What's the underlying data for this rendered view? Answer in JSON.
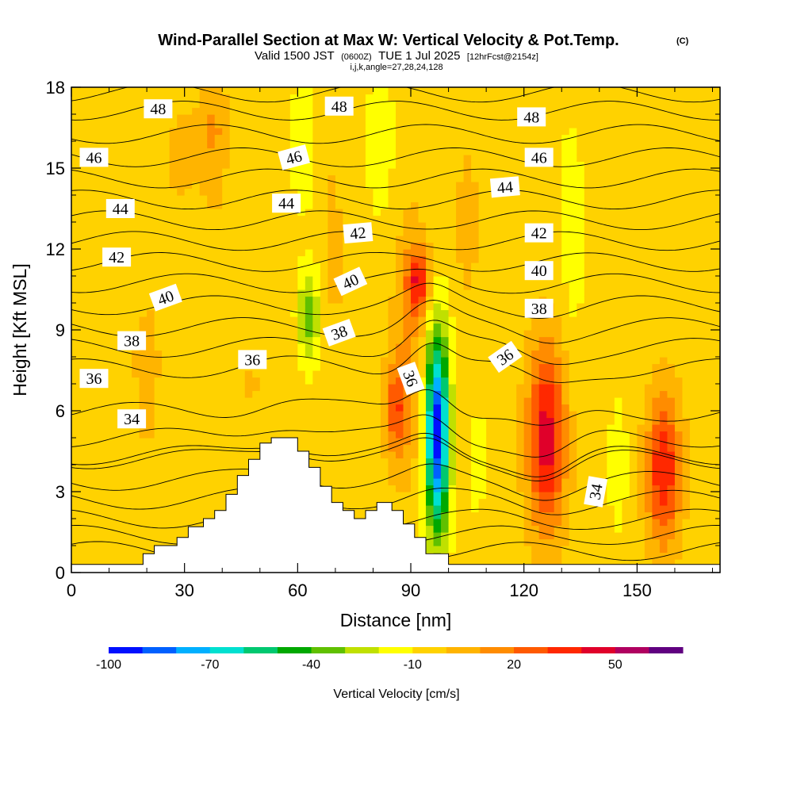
{
  "chart_data": {
    "type": "heatmap",
    "title": "Wind-Parallel Section at Max W: Vertical Velocity & Pot.Temp.",
    "title_mark": "(C)",
    "subtitle": {
      "valid": "Valid 1500 JST",
      "utc": "(0600Z)",
      "date": "TUE 1 Jul 2025",
      "fcst": "[12hrFcst@2154z]"
    },
    "index_line": "i,j,k,angle=27,28,24,128",
    "xlabel": "Distance [nm]",
    "ylabel": "Height [Kft MSL]",
    "xlim": [
      0,
      172
    ],
    "ylim": [
      0,
      18
    ],
    "x_ticks": [
      "0",
      "30",
      "60",
      "90",
      "120",
      "150"
    ],
    "y_ticks": [
      "0",
      "3",
      "6",
      "9",
      "12",
      "15",
      "18"
    ],
    "grid": false,
    "colorbar": {
      "label": "Vertical Velocity [cm/s]",
      "tick_labels": [
        "-100",
        "-70",
        "-40",
        "-10",
        "20",
        "50"
      ],
      "colors": [
        "#0010ff",
        "#0060ff",
        "#00b0ff",
        "#00e0d0",
        "#00c870",
        "#00a800",
        "#60c000",
        "#c0e000",
        "#ffff00",
        "#ffd200",
        "#ffb400",
        "#ff8c00",
        "#ff5a00",
        "#ff2800",
        "#e0002a",
        "#b00060",
        "#600080"
      ]
    },
    "w_field": {
      "units": "cm/s",
      "background": -5,
      "cells": [
        {
          "x": 20,
          "z": 9,
          "sx": 16,
          "sz": 6,
          "w": 5
        },
        {
          "x": 30,
          "z": 16,
          "sx": 8,
          "sz": 3,
          "w": 5
        },
        {
          "x": 38,
          "z": 16.5,
          "sx": 3,
          "sz": 2.5,
          "w": 15
        },
        {
          "x": 20,
          "z": 4,
          "sx": 10,
          "sz": 3,
          "w": 2
        },
        {
          "x": 48,
          "z": 7,
          "sx": 6,
          "sz": 3,
          "w": 5
        },
        {
          "x": 68,
          "z": 14,
          "sx": 4,
          "sz": 4,
          "w": 5
        },
        {
          "x": 62,
          "z": 16,
          "sx": 4,
          "sz": 3,
          "w": -12
        },
        {
          "x": 82,
          "z": 16,
          "sx": 4,
          "sz": 3,
          "w": -12
        },
        {
          "x": 70,
          "z": 11,
          "sx": 2.5,
          "sz": 3,
          "w": 5
        },
        {
          "x": 63,
          "z": 9.5,
          "sx": 3,
          "sz": 1.8,
          "w": -30
        },
        {
          "x": 90,
          "z": 8.5,
          "sx": 5,
          "sz": 5,
          "w": 15
        },
        {
          "x": 86,
          "z": 6,
          "sx": 3,
          "sz": 1.8,
          "w": 30
        },
        {
          "x": 92,
          "z": 10.8,
          "sx": 3,
          "sz": 1.2,
          "w": 38
        },
        {
          "x": 97,
          "z": 5.2,
          "sx": 3.2,
          "sz": 3.8,
          "w": -92
        },
        {
          "x": 105,
          "z": 13,
          "sx": 3,
          "sz": 3,
          "w": 10
        },
        {
          "x": 112,
          "z": 2,
          "sx": 2.5,
          "sz": 2,
          "w": 4
        },
        {
          "x": 108,
          "z": 4,
          "sx": 2,
          "sz": 2.5,
          "w": -10
        },
        {
          "x": 126,
          "z": 5,
          "sx": 5,
          "sz": 3.5,
          "w": 50
        },
        {
          "x": 133,
          "z": 13,
          "sx": 4,
          "sz": 5,
          "w": -10
        },
        {
          "x": 138,
          "z": 17,
          "sx": 4,
          "sz": 2,
          "w": 5
        },
        {
          "x": 160,
          "z": 16.5,
          "sx": 8,
          "sz": 3,
          "w": 5
        },
        {
          "x": 145,
          "z": 4,
          "sx": 3,
          "sz": 3,
          "w": -10
        },
        {
          "x": 157,
          "z": 3.8,
          "sx": 4.5,
          "sz": 2.8,
          "w": 45
        },
        {
          "x": 170,
          "z": 6,
          "sx": 5,
          "sz": 5,
          "w": 2
        }
      ]
    },
    "theta_labels": [
      {
        "text": "48",
        "x": 23,
        "z": 17.2,
        "angle": 0
      },
      {
        "text": "48",
        "x": 71,
        "z": 17.3,
        "angle": 0
      },
      {
        "text": "48",
        "x": 122,
        "z": 16.9,
        "angle": 0
      },
      {
        "text": "46",
        "x": 6,
        "z": 15.4,
        "angle": 0
      },
      {
        "text": "46",
        "x": 59,
        "z": 15.4,
        "angle": -15
      },
      {
        "text": "46",
        "x": 124,
        "z": 15.4,
        "angle": 0
      },
      {
        "text": "44",
        "x": 13,
        "z": 13.5,
        "angle": 0
      },
      {
        "text": "44",
        "x": 57,
        "z": 13.7,
        "angle": 0
      },
      {
        "text": "44",
        "x": 115,
        "z": 14.3,
        "angle": -5
      },
      {
        "text": "42",
        "x": 12,
        "z": 11.7,
        "angle": 0
      },
      {
        "text": "42",
        "x": 76,
        "z": 12.6,
        "angle": -5
      },
      {
        "text": "42",
        "x": 124,
        "z": 12.6,
        "angle": 0
      },
      {
        "text": "40",
        "x": 25,
        "z": 10.2,
        "angle": -20
      },
      {
        "text": "40",
        "x": 74,
        "z": 10.8,
        "angle": -25
      },
      {
        "text": "40",
        "x": 124,
        "z": 11.2,
        "angle": 0
      },
      {
        "text": "38",
        "x": 16,
        "z": 8.6,
        "angle": 0
      },
      {
        "text": "38",
        "x": 71,
        "z": 8.9,
        "angle": -20
      },
      {
        "text": "38",
        "x": 124,
        "z": 9.8,
        "angle": 0
      },
      {
        "text": "36",
        "x": 6,
        "z": 7.2,
        "angle": 0
      },
      {
        "text": "36",
        "x": 48,
        "z": 7.9,
        "angle": 0
      },
      {
        "text": "36",
        "x": 90,
        "z": 7.2,
        "angle": 70
      },
      {
        "text": "36",
        "x": 115,
        "z": 8.0,
        "angle": -35
      },
      {
        "text": "34",
        "x": 16,
        "z": 5.7,
        "angle": 0
      },
      {
        "text": "34",
        "x": 139,
        "z": 3.0,
        "angle": -80
      }
    ],
    "terrain": [
      [
        0,
        0.3
      ],
      [
        19,
        0.3
      ],
      [
        19,
        0.7
      ],
      [
        22,
        0.7
      ],
      [
        22,
        1.0
      ],
      [
        28,
        1.0
      ],
      [
        28,
        1.3
      ],
      [
        31,
        1.3
      ],
      [
        31,
        1.7
      ],
      [
        35,
        1.7
      ],
      [
        35,
        2.0
      ],
      [
        38,
        2.0
      ],
      [
        38,
        2.3
      ],
      [
        41,
        2.3
      ],
      [
        41,
        2.9
      ],
      [
        44,
        2.9
      ],
      [
        44,
        3.6
      ],
      [
        47,
        3.6
      ],
      [
        47,
        4.2
      ],
      [
        50,
        4.2
      ],
      [
        50,
        4.8
      ],
      [
        53,
        4.8
      ],
      [
        53,
        5.0
      ],
      [
        60,
        5.0
      ],
      [
        60,
        4.5
      ],
      [
        63,
        4.5
      ],
      [
        63,
        3.9
      ],
      [
        66,
        3.9
      ],
      [
        66,
        3.2
      ],
      [
        69,
        3.2
      ],
      [
        69,
        2.6
      ],
      [
        72,
        2.6
      ],
      [
        72,
        2.3
      ],
      [
        75,
        2.3
      ],
      [
        75,
        2.0
      ],
      [
        78,
        2.0
      ],
      [
        78,
        2.3
      ],
      [
        81,
        2.3
      ],
      [
        81,
        2.6
      ],
      [
        85,
        2.6
      ],
      [
        85,
        2.3
      ],
      [
        88,
        2.3
      ],
      [
        88,
        1.8
      ],
      [
        91,
        1.8
      ],
      [
        91,
        1.3
      ],
      [
        94,
        1.3
      ],
      [
        94,
        0.7
      ],
      [
        100,
        0.7
      ],
      [
        100,
        0.3
      ],
      [
        172,
        0.3
      ]
    ]
  }
}
